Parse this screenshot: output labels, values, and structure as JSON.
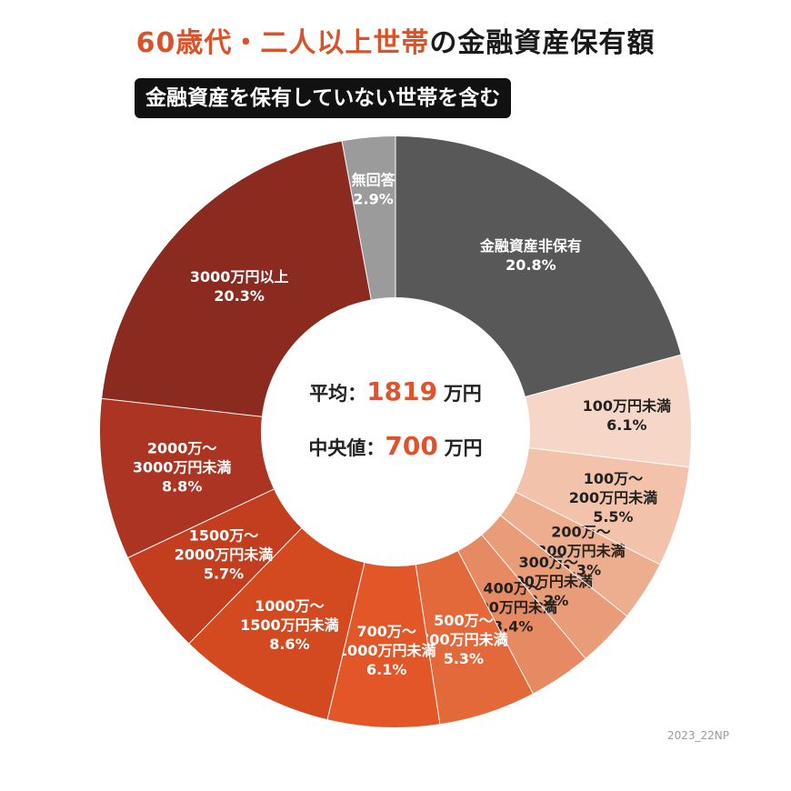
{
  "title": {
    "highlight": "60歳代・二人以上世帯",
    "rest": "の金融資産保有額"
  },
  "subtitle": "金融資産を保有していない世帯を含む",
  "center": {
    "mean_label": "平均：",
    "mean_value": "1819",
    "mean_unit": "万円",
    "median_label": "中央値：",
    "median_value": "700",
    "median_unit": "万円"
  },
  "source": "2023_22NP",
  "chart_data": {
    "type": "pie",
    "donut": true,
    "unit": "%",
    "slices": [
      {
        "label": [
          "金融資産非保有"
        ],
        "value": 20.8,
        "display": "20.8%",
        "color": "#585858",
        "text": "#ffffff"
      },
      {
        "label": [
          "100万円未満"
        ],
        "value": 6.1,
        "display": "6.1%",
        "color": "#f6d7c7",
        "text": "#222222"
      },
      {
        "label": [
          "100万～",
          "200万円未満"
        ],
        "value": 5.5,
        "display": "5.5%",
        "color": "#f2c2aa",
        "text": "#222222"
      },
      {
        "label": [
          "200万～",
          "300万円未満"
        ],
        "value": 3.3,
        "display": "3.3%",
        "color": "#edae8f",
        "text": "#222222"
      },
      {
        "label": [
          "300万～",
          "400万円未満"
        ],
        "value": 3.2,
        "display": "3.2%",
        "color": "#e99c78",
        "text": "#222222"
      },
      {
        "label": [
          "400万～",
          "500万円未満"
        ],
        "value": 3.4,
        "display": "3.4%",
        "color": "#e68a63",
        "text": "#222222"
      },
      {
        "label": [
          "500万～",
          "700万円未満"
        ],
        "value": 5.3,
        "display": "5.3%",
        "color": "#e3693b",
        "text": "#ffffff"
      },
      {
        "label": [
          "700万～",
          "1000万円未満"
        ],
        "value": 6.1,
        "display": "6.1%",
        "color": "#e35628",
        "text": "#ffffff"
      },
      {
        "label": [
          "1000万～",
          "1500万円未満"
        ],
        "value": 8.6,
        "display": "8.6%",
        "color": "#d34a20",
        "text": "#ffffff"
      },
      {
        "label": [
          "1500万～",
          "2000万円未満"
        ],
        "value": 5.7,
        "display": "5.7%",
        "color": "#c33e1f",
        "text": "#ffffff"
      },
      {
        "label": [
          "2000万～",
          "3000万円未満"
        ],
        "value": 8.8,
        "display": "8.8%",
        "color": "#ab3522",
        "text": "#ffffff"
      },
      {
        "label": [
          "3000万円以上"
        ],
        "value": 20.3,
        "display": "20.3%",
        "color": "#8b2a1e",
        "text": "#ffffff"
      },
      {
        "label": [
          "無回答"
        ],
        "value": 2.9,
        "display": "2.9%",
        "color": "#9b9b9b",
        "text": "#ffffff"
      }
    ]
  }
}
